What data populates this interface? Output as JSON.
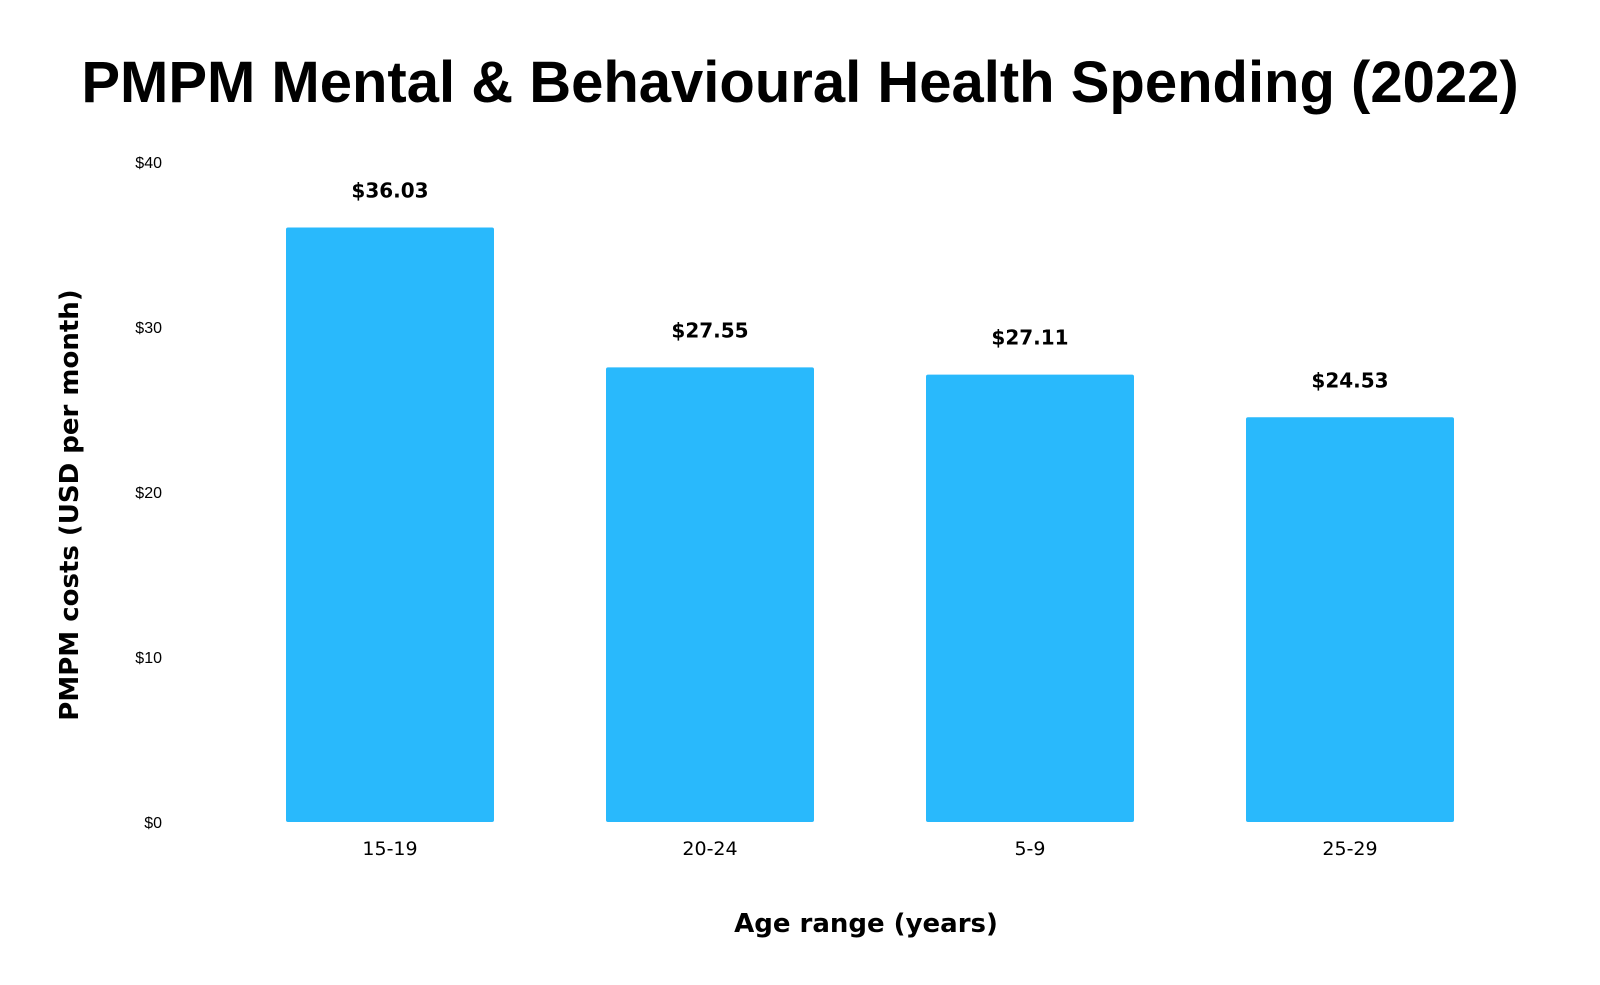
{
  "chart_data": {
    "type": "bar",
    "title": "PMPM Mental & Behavioural Health Spending (2022)",
    "xlabel": "Age range (years)",
    "ylabel": "PMPM costs (USD per month)",
    "categories": [
      "15-19",
      "20-24",
      "5-9",
      "25-29"
    ],
    "values": [
      36.03,
      27.55,
      27.11,
      24.53
    ],
    "value_labels": [
      "$36.03",
      "$27.55",
      "$27.11",
      "$24.53"
    ],
    "ylim": [
      0,
      40
    ],
    "yticks": [
      0,
      10,
      20,
      30,
      40
    ],
    "ytick_labels": [
      "$0",
      "$10",
      "$20",
      "$30",
      "$40"
    ],
    "grid": false,
    "legend": "none",
    "bar_color": "#29B9FC"
  }
}
